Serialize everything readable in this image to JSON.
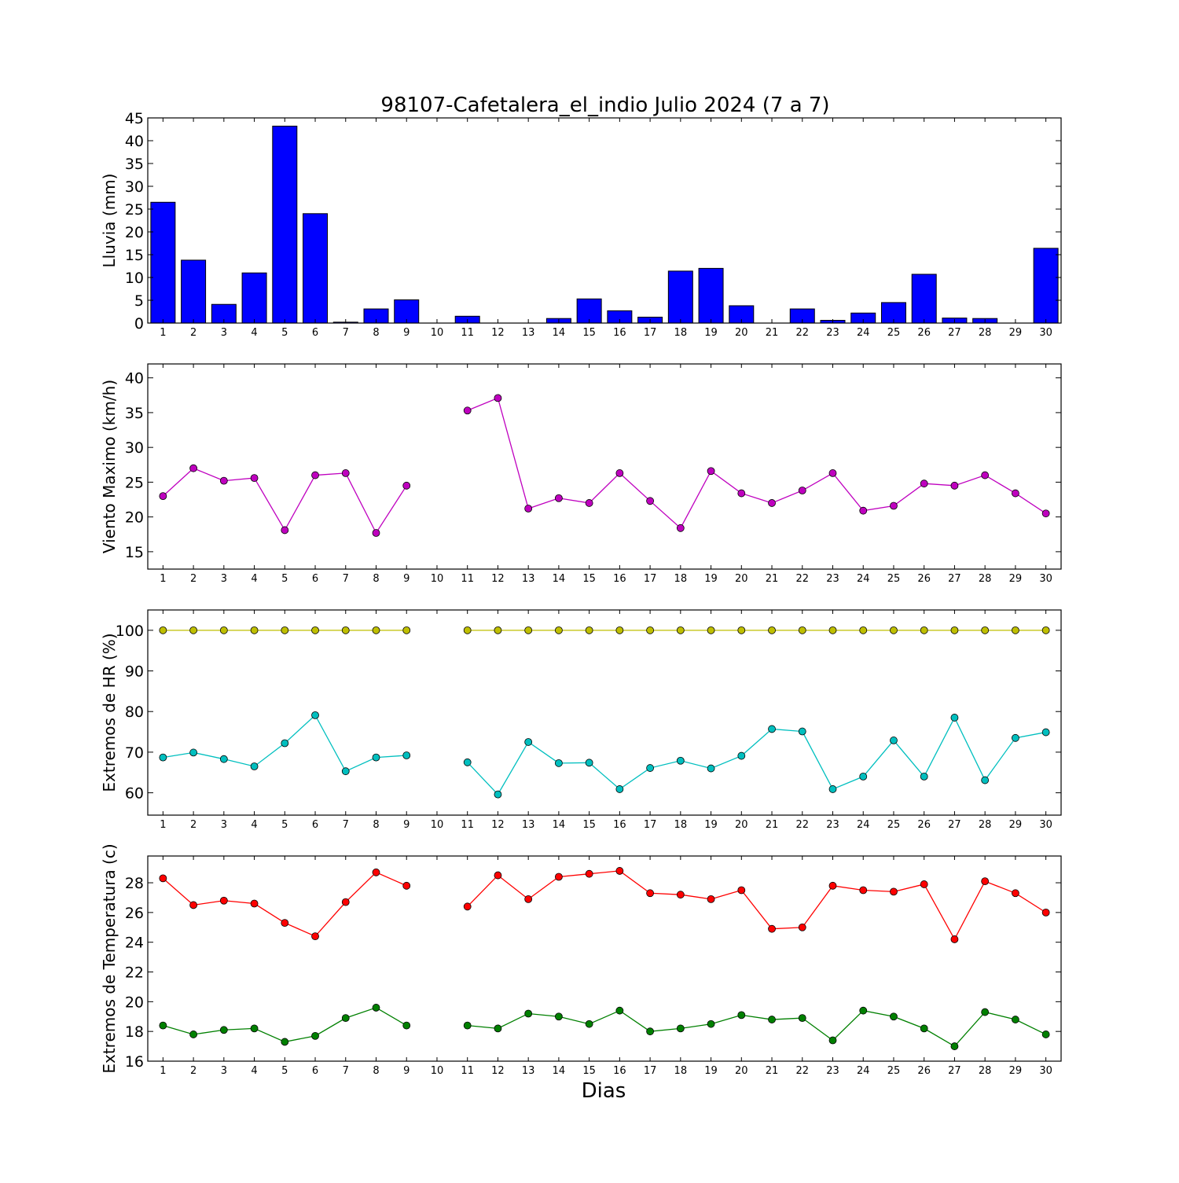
{
  "chart_data": {
    "title": "98107-Cafetalera_el_indio Julio 2024  (7 a 7)",
    "xlabel": "Dias",
    "days": [
      1,
      2,
      3,
      4,
      5,
      6,
      7,
      8,
      9,
      10,
      11,
      12,
      13,
      14,
      15,
      16,
      17,
      18,
      19,
      20,
      21,
      22,
      23,
      24,
      25,
      26,
      27,
      28,
      29,
      30
    ],
    "panels": [
      {
        "type": "bar",
        "ylabel": "Lluvia (mm)",
        "ylim": [
          0,
          45
        ],
        "yticks": [
          0,
          5,
          10,
          15,
          20,
          25,
          30,
          35,
          40,
          45
        ],
        "series": [
          {
            "color": "#0000ff",
            "values": [
              26.5,
              13.8,
              4.1,
              11.0,
              43.2,
              24.0,
              0.2,
              3.1,
              5.1,
              0,
              1.5,
              0,
              0,
              1.0,
              5.3,
              2.7,
              1.3,
              11.4,
              12.0,
              3.8,
              0,
              3.1,
              0.6,
              2.2,
              4.5,
              10.7,
              1.1,
              1.0,
              0,
              16.4
            ]
          }
        ]
      },
      {
        "type": "line",
        "ylabel": "Viento Maximo (km/h)",
        "ylim": [
          12.5,
          42
        ],
        "yticks": [
          15,
          20,
          25,
          30,
          35,
          40
        ],
        "series": [
          {
            "color": "#bf00bf",
            "values": [
              23.0,
              27.0,
              25.2,
              25.6,
              18.1,
              26.0,
              26.3,
              17.7,
              24.5,
              null,
              35.3,
              37.1,
              21.2,
              22.7,
              22.0,
              26.3,
              22.3,
              18.4,
              26.6,
              23.4,
              22.0,
              23.8,
              26.3,
              20.9,
              21.6,
              24.8,
              24.5,
              26.0,
              23.4,
              20.5
            ]
          }
        ]
      },
      {
        "type": "line",
        "ylabel": "Extremos de HR (%)",
        "ylim": [
          54.5,
          105
        ],
        "yticks": [
          60,
          70,
          80,
          90,
          100
        ],
        "series": [
          {
            "color": "#bfbf00",
            "values": [
              100,
              100,
              100,
              100,
              100,
              100,
              100,
              100,
              100,
              null,
              100,
              100,
              100,
              100,
              100,
              100,
              100,
              100,
              100,
              100,
              100,
              100,
              100,
              100,
              100,
              100,
              100,
              100,
              100,
              100
            ]
          },
          {
            "color": "#00bfbf",
            "values": [
              68.7,
              69.9,
              68.3,
              66.5,
              72.2,
              79.1,
              65.3,
              68.7,
              69.2,
              null,
              67.5,
              59.6,
              72.5,
              67.3,
              67.4,
              60.9,
              66.1,
              67.9,
              66.0,
              69.1,
              75.7,
              75.1,
              60.9,
              64.0,
              72.9,
              64.0,
              78.5,
              63.1,
              73.5,
              74.9
            ]
          }
        ]
      },
      {
        "type": "line",
        "ylabel": "Extremos de Temperatura (c)",
        "ylim": [
          16,
          29.8
        ],
        "yticks": [
          16,
          18,
          20,
          22,
          24,
          26,
          28
        ],
        "series": [
          {
            "color": "#ff0000",
            "values": [
              28.3,
              26.5,
              26.8,
              26.6,
              25.3,
              24.4,
              26.7,
              28.7,
              27.8,
              null,
              26.4,
              28.5,
              26.9,
              28.4,
              28.6,
              28.8,
              27.3,
              27.2,
              26.9,
              27.5,
              24.9,
              25.0,
              27.8,
              27.5,
              27.4,
              27.9,
              24.2,
              28.1,
              27.3,
              26.0
            ]
          },
          {
            "color": "#008000",
            "values": [
              18.4,
              17.8,
              18.1,
              18.2,
              17.3,
              17.7,
              18.9,
              19.6,
              18.4,
              null,
              18.4,
              18.2,
              19.2,
              19.0,
              18.5,
              19.4,
              18.0,
              18.2,
              18.5,
              19.1,
              18.8,
              18.9,
              17.4,
              19.4,
              19.0,
              18.2,
              17.0,
              19.3,
              18.8,
              17.8
            ]
          }
        ]
      }
    ]
  }
}
